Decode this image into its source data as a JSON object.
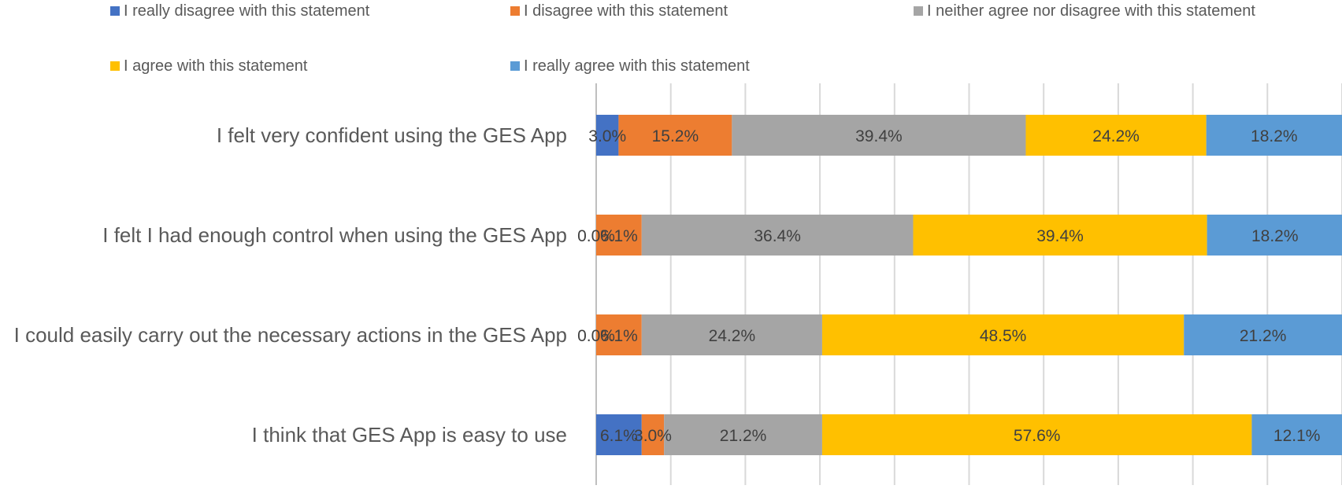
{
  "chart_data": {
    "type": "bar",
    "orientation": "horizontal",
    "stacked": true,
    "percent_stacked": true,
    "xlim": [
      0,
      100
    ],
    "grid": true,
    "legend_position": "top",
    "categories": [
      "I felt very confident using the GES App",
      "I felt I had enough  control when using the GES App",
      "I could easily carry out the necessary actions in the GES App",
      "I think that GES App is easy to use"
    ],
    "series": [
      {
        "name": "I really disagree with this statement",
        "color": "#4472C4",
        "values": [
          3.0,
          0.0,
          0.0,
          6.1
        ],
        "labels": [
          "3.0%",
          "0.0%",
          "0.0%",
          "6.1%"
        ]
      },
      {
        "name": "I disagree with this statement",
        "color": "#ED7D31",
        "values": [
          15.2,
          6.1,
          6.1,
          3.0
        ],
        "labels": [
          "15.2%",
          "6.1%",
          "6.1%",
          "3.0%"
        ]
      },
      {
        "name": "I neither agree nor disagree with this statement",
        "color": "#A5A5A5",
        "values": [
          39.4,
          36.4,
          24.2,
          21.2
        ],
        "labels": [
          "39.4%",
          "36.4%",
          "24.2%",
          "21.2%"
        ]
      },
      {
        "name": "I agree with this statement",
        "color": "#FFC000",
        "values": [
          24.2,
          39.4,
          48.5,
          57.6
        ],
        "labels": [
          "24.2%",
          "39.4%",
          "48.5%",
          "57.6%"
        ]
      },
      {
        "name": "I really agree with this statement",
        "color": "#5B9BD5",
        "values": [
          18.2,
          18.2,
          21.2,
          12.1
        ],
        "labels": [
          "18.2%",
          "18.2%",
          "21.2%",
          "12.1%"
        ]
      }
    ]
  }
}
